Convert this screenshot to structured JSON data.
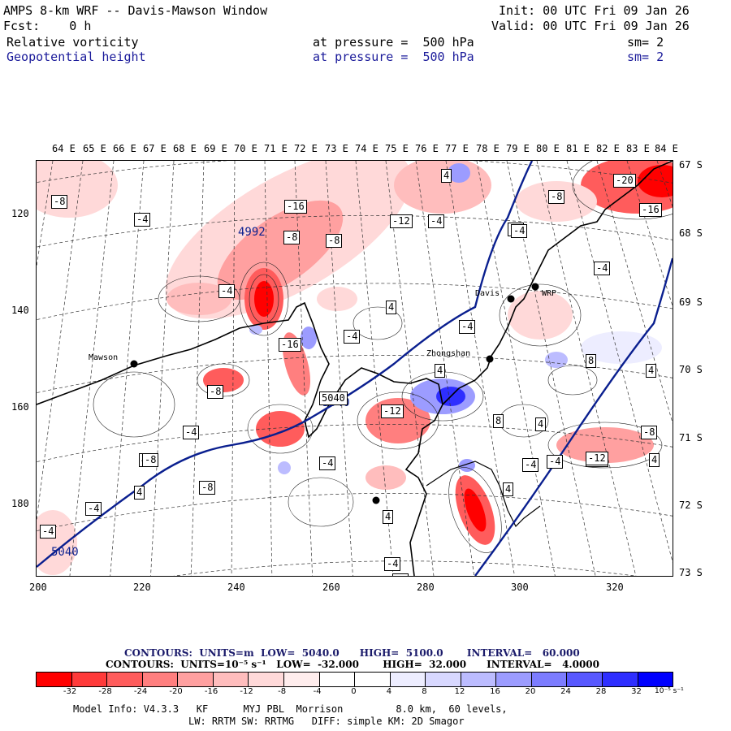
{
  "header": {
    "title": "AMPS 8-km WRF -- Davis-Mawson Window",
    "init": "Init: 00 UTC Fri 09 Jan 26",
    "fcst": "Fcst:    0 h",
    "valid": "Valid: 00 UTC Fri 09 Jan 26",
    "field1": "Relative vorticity",
    "field1_level": "at pressure =  500 hPa",
    "field1_sm": "sm= 2",
    "field2": "Geopotential height",
    "field2_level": "at pressure =  500 hPa",
    "field2_sm": "sm= 2"
  },
  "colors": {
    "reds": [
      "#ff0000",
      "#ff3a3a",
      "#ff5c5c",
      "#ff7f7f",
      "#ffa0a0",
      "#ffbdbd",
      "#ffd9d9",
      "#ffeded"
    ],
    "blues": [
      "#ededff",
      "#d8d8ff",
      "#bcbcff",
      "#9c9cff",
      "#7c7cff",
      "#5858ff",
      "#2e2eff",
      "#0000ff"
    ],
    "height_line": "#0a1f8f"
  },
  "axes": {
    "lon_top": [
      "64 E",
      "65 E",
      "66 E",
      "67 E",
      "68 E",
      "69 E",
      "70 E",
      "71 E",
      "72 E",
      "73 E",
      "74 E",
      "75 E",
      "76 E",
      "77 E",
      "78 E",
      "79 E",
      "80 E",
      "81 E",
      "82 E",
      "83 E",
      "84 E"
    ],
    "lat_right": [
      "67 S",
      "68 S",
      "69 S",
      "70 S",
      "71 S",
      "72 S",
      "73 S"
    ],
    "x_ticks": [
      "200",
      "220",
      "240",
      "260",
      "280",
      "300",
      "320"
    ],
    "y_ticks": [
      "120",
      "140",
      "160",
      "180"
    ]
  },
  "places": [
    {
      "name": "Mawson"
    },
    {
      "name": "Davis"
    },
    {
      "name": "Zhongshan"
    },
    {
      "name": "WRP"
    }
  ],
  "map_labels": {
    "height_labels": [
      "4992",
      "5040",
      "5040"
    ],
    "vort_labels": [
      "-8",
      "-4",
      "-8",
      "-16",
      "-8",
      "-8",
      "-4",
      "-16",
      "-12",
      "-4",
      "-4",
      "-4",
      "-8",
      "-20",
      "-16",
      "-4",
      "-8",
      "-4",
      "-4",
      "4",
      "4",
      "-4",
      "-16",
      "-4",
      "-8",
      "5040",
      "-12",
      "-12",
      "4",
      "8",
      "4",
      "-8",
      "-4",
      "4",
      "-4",
      "4",
      "-4",
      "-4",
      "-4",
      "-4",
      "8",
      "-12",
      "-8",
      "4",
      "4",
      "4",
      "4"
    ]
  },
  "legend": {
    "contours1": "CONTOURS:  UNITS=m  LOW=  5040.0      HIGH=  5100.0       INTERVAL=   60.000",
    "contours2": "CONTOURS:  UNITS=10⁻⁵ s⁻¹   LOW=  -32.000       HIGH=  32.000      INTERVAL=   4.0000",
    "colorbar_labels": [
      "-32",
      "-28",
      "-24",
      "-20",
      "-16",
      "-12",
      "-8",
      "-4",
      "0",
      "4",
      "8",
      "12",
      "16",
      "20",
      "24",
      "28",
      "32"
    ],
    "colorbar_unit": "10⁻⁵ s⁻¹"
  },
  "footer": {
    "line1": "Model Info: V4.3.3   KF      MYJ PBL  Morrison         8.0 km,  60 levels,",
    "line2": "LW: RRTM SW: RRTMG   DIFF: simple KM: 2D Smagor"
  }
}
